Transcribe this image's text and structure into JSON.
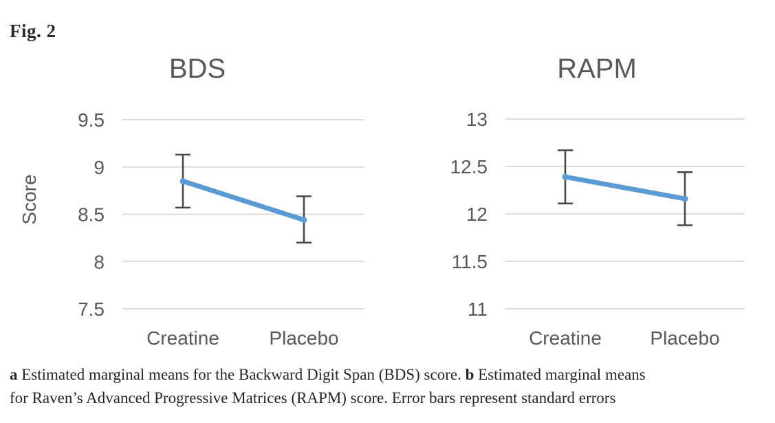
{
  "figure_label": "Fig. 2",
  "colors": {
    "series_line": "#5B9BD5",
    "error_bar": "#4a4a4a",
    "gridline": "#d2d2d2",
    "axis_text": "#595959",
    "title_text": "#595959",
    "caption_text": "#262626"
  },
  "chart_data": [
    {
      "type": "line",
      "title": "BDS",
      "ylabel": "Score",
      "xlabel": "",
      "categories": [
        "Creatine",
        "Placebo"
      ],
      "values": [
        8.85,
        8.44
      ],
      "error_low": [
        8.57,
        8.2
      ],
      "error_high": [
        9.13,
        8.69
      ],
      "ylim": [
        7.5,
        9.5
      ],
      "yticks": [
        9.5,
        9,
        8.5,
        8,
        7.5
      ],
      "ytick_labels": [
        "9.5",
        "9",
        "8.5",
        "8",
        "7.5"
      ],
      "grid": true,
      "legend_position": "none",
      "error_bars_meaning": "standard errors"
    },
    {
      "type": "line",
      "title": "RAPM",
      "ylabel": "",
      "xlabel": "",
      "categories": [
        "Creatine",
        "Placebo"
      ],
      "values": [
        12.39,
        12.16
      ],
      "error_low": [
        12.11,
        11.88
      ],
      "error_high": [
        12.67,
        12.44
      ],
      "ylim": [
        11,
        13
      ],
      "yticks": [
        13,
        12.5,
        12,
        11.5,
        11
      ],
      "ytick_labels": [
        "13",
        "12.5",
        "12",
        "11.5",
        "11"
      ],
      "grid": true,
      "legend_position": "none",
      "error_bars_meaning": "standard errors"
    }
  ],
  "caption": {
    "label_a": "a",
    "text_a": " Estimated marginal means for the Backward Digit Span (BDS) score. ",
    "label_b": "b",
    "text_b_line1": " Estimated marginal means",
    "line2": "for Raven’s Advanced Progressive Matrices (RAPM) score. Error bars represent standard errors"
  }
}
